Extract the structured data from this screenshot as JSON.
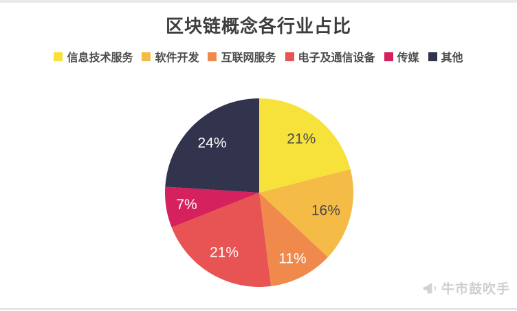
{
  "page": {
    "title": "区块链概念各行业占比",
    "watermark_text": "牛市鼓吹手"
  },
  "chart_data": {
    "type": "pie",
    "title": "区块链概念各行业占比",
    "legend_position": "top",
    "start_angle_deg": 0,
    "direction": "clockwise",
    "slices": [
      {
        "label": "信息技术服务",
        "value": 21,
        "display": "21%",
        "color": "#F7E23B",
        "label_color": "#4a4a4a"
      },
      {
        "label": "软件开发",
        "value": 16,
        "display": "16%",
        "color": "#F4BB46",
        "label_color": "#4a4a4a"
      },
      {
        "label": "互联网服务",
        "value": 11,
        "display": "11%",
        "color": "#EF8A4C",
        "label_color": "#ffffff"
      },
      {
        "label": "电子及通信设备",
        "value": 21,
        "display": "21%",
        "color": "#E85353",
        "label_color": "#ffffff"
      },
      {
        "label": "传媒",
        "value": 7,
        "display": "7%",
        "color": "#D6215F",
        "label_color": "#ffffff"
      },
      {
        "label": "其他",
        "value": 24,
        "display": "24%",
        "color": "#32334D",
        "label_color": "#ffffff"
      }
    ]
  }
}
